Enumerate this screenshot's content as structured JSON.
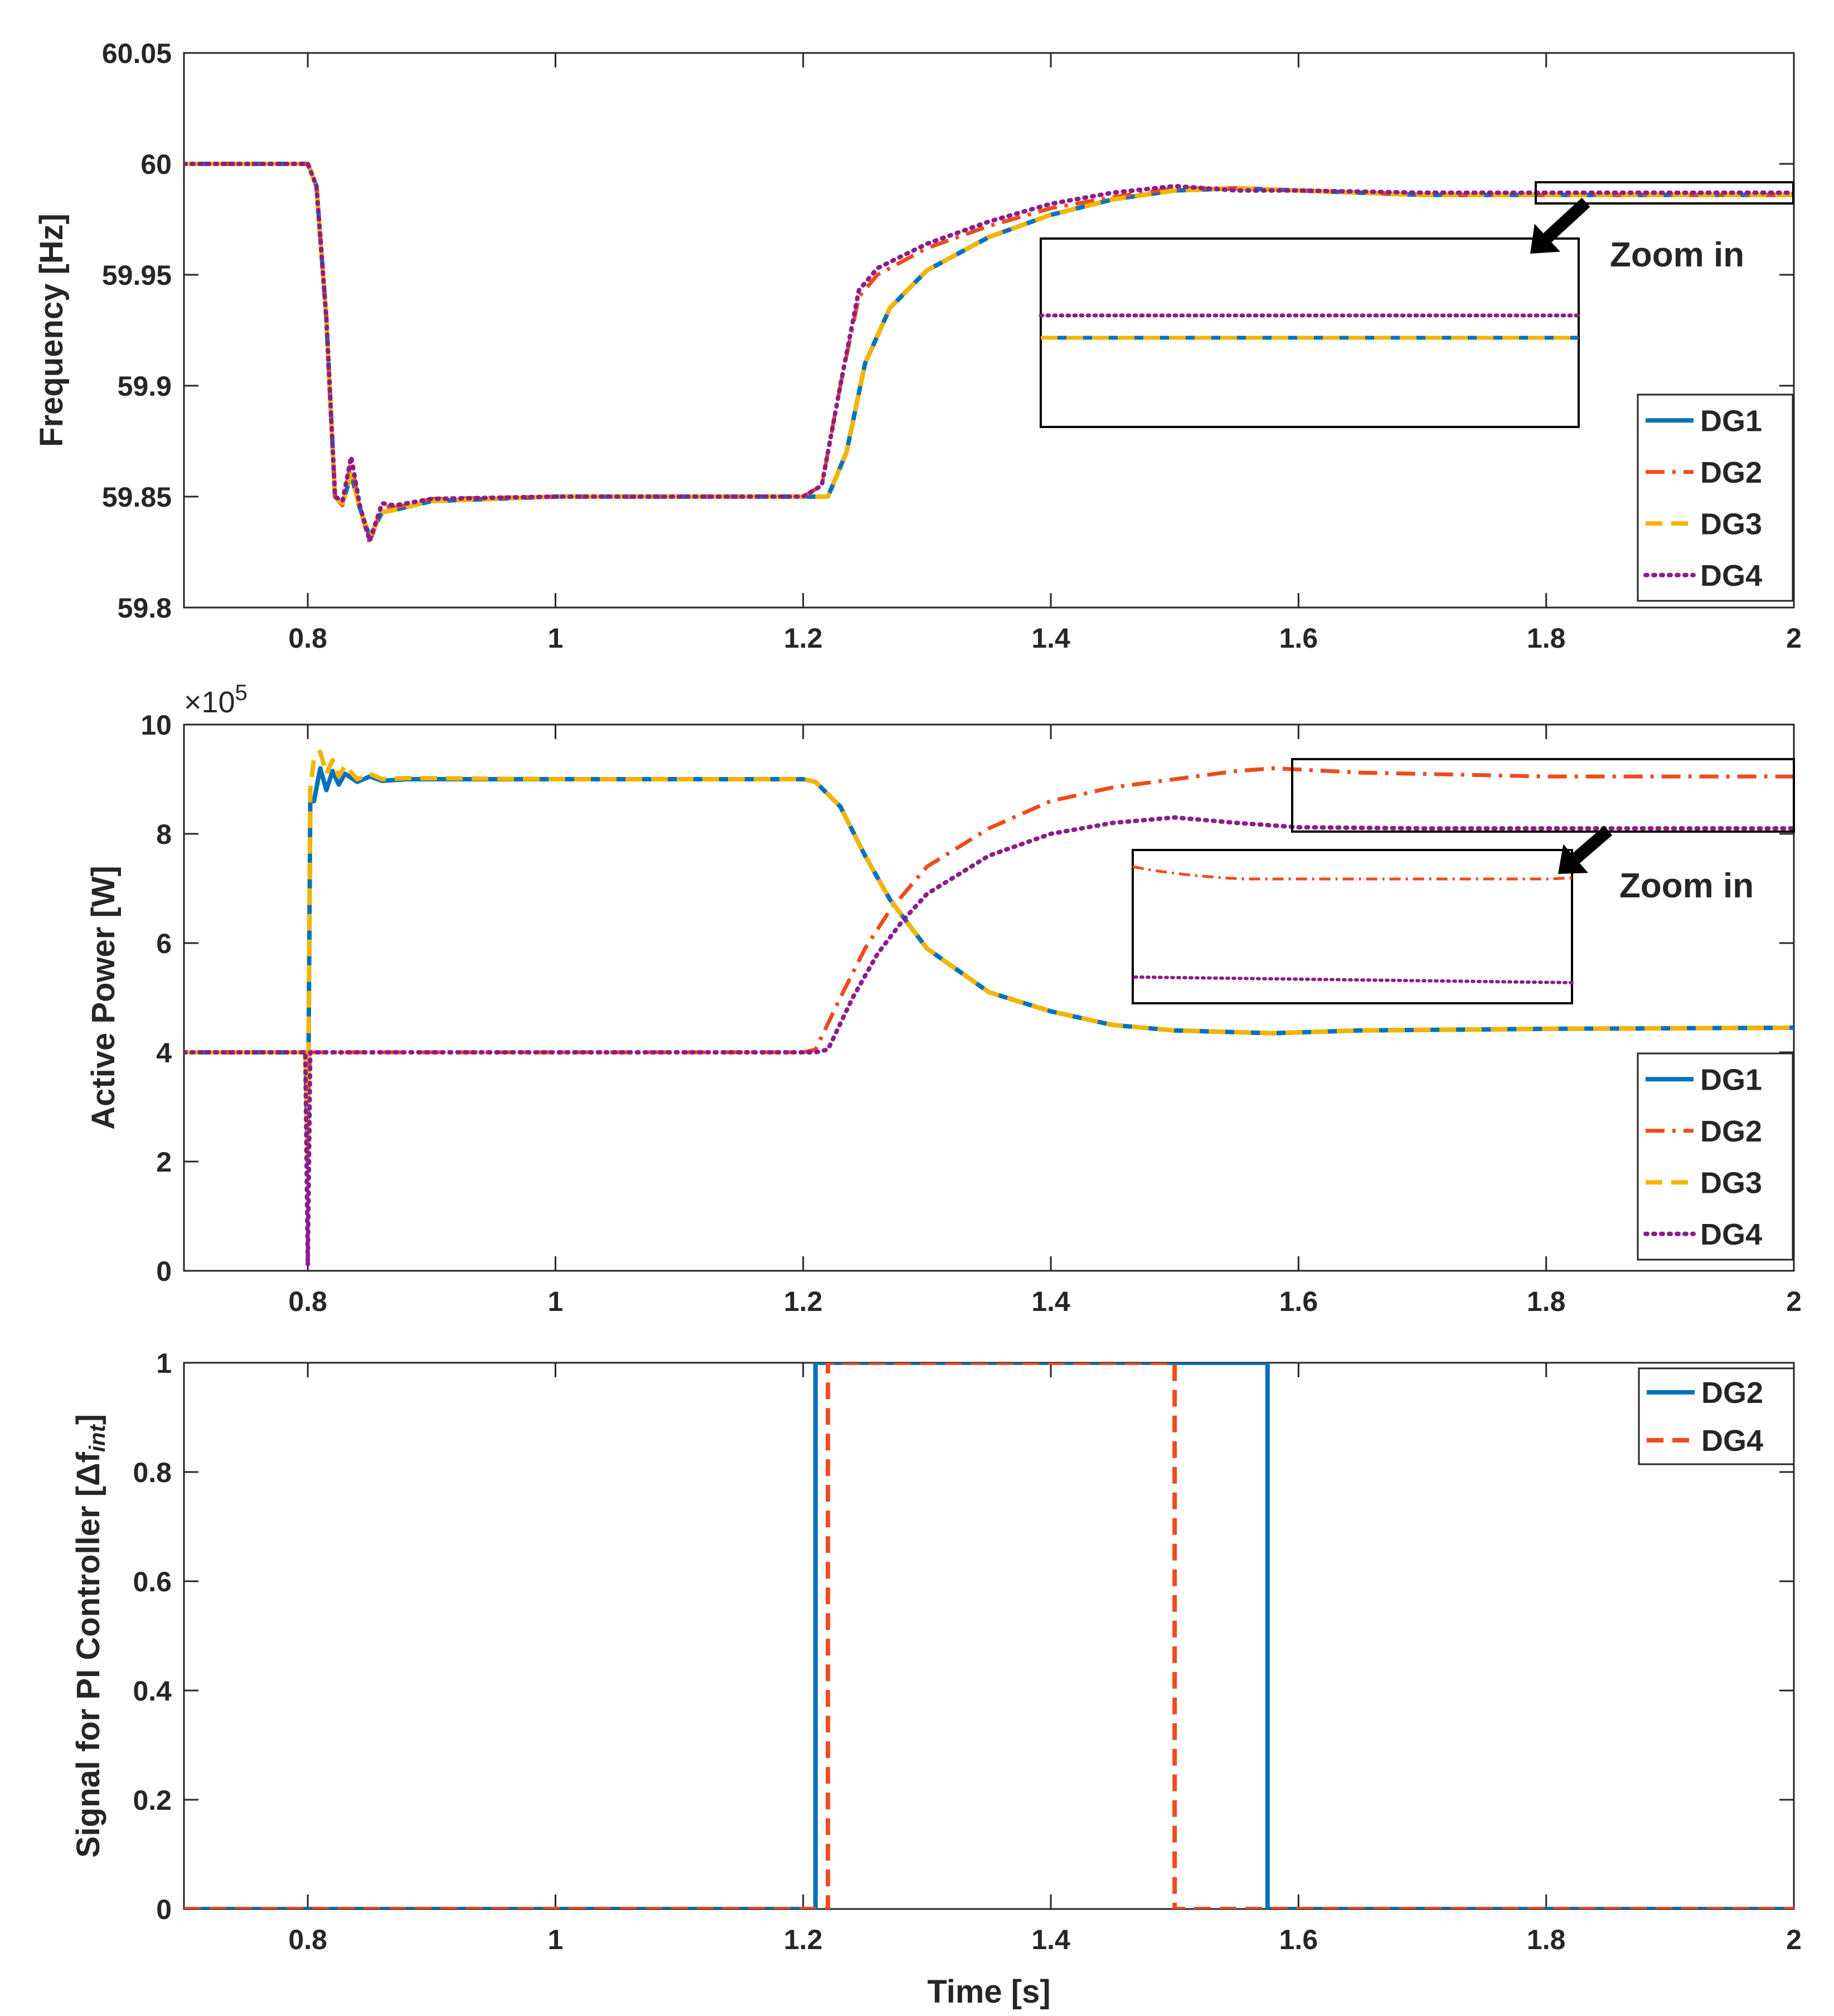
{
  "colors": {
    "DG1": "#0072BD",
    "DG2": "#EE4B1E",
    "DG3": "#F5B400",
    "DG4": "#8B1E8B",
    "signal_DG2": "#0072BD",
    "signal_DG4": "#EE4B1E"
  },
  "chart_data": [
    {
      "id": "frequency",
      "type": "line",
      "ylabel": "Frequency [Hz]",
      "xlabel": "",
      "xlim": [
        0.7,
        2
      ],
      "ylim": [
        59.8,
        60.05
      ],
      "x_ticks": [
        0.8,
        1,
        1.2,
        1.4,
        1.6,
        1.8,
        2
      ],
      "x_tick_labels": [
        "0.8",
        "1",
        "1.2",
        "1.4",
        "1.6",
        "1.8",
        "2"
      ],
      "y_ticks": [
        59.8,
        59.85,
        59.9,
        59.95,
        60,
        60.05
      ],
      "y_tick_labels": [
        "59.8",
        "59.85",
        "59.9",
        "59.95",
        "60",
        "60.05"
      ],
      "legend_location": "bottom-right",
      "annotation": "Zoom in",
      "series": [
        {
          "name": "DG1",
          "style": "solid",
          "points": [
            [
              0.7,
              60
            ],
            [
              0.8,
              60
            ],
            [
              0.807,
              59.99
            ],
            [
              0.815,
              59.93
            ],
            [
              0.822,
              59.85
            ],
            [
              0.828,
              59.847
            ],
            [
              0.835,
              59.86
            ],
            [
              0.842,
              59.845
            ],
            [
              0.85,
              59.832
            ],
            [
              0.86,
              59.843
            ],
            [
              0.87,
              59.844
            ],
            [
              0.9,
              59.848
            ],
            [
              1.0,
              59.85
            ],
            [
              1.2,
              59.85
            ],
            [
              1.22,
              59.85
            ],
            [
              1.235,
              59.87
            ],
            [
              1.25,
              59.91
            ],
            [
              1.27,
              59.935
            ],
            [
              1.3,
              59.952
            ],
            [
              1.35,
              59.967
            ],
            [
              1.4,
              59.977
            ],
            [
              1.45,
              59.984
            ],
            [
              1.5,
              59.988
            ],
            [
              1.55,
              59.989
            ],
            [
              1.6,
              59.988
            ],
            [
              1.7,
              59.986
            ],
            [
              2.0,
              59.986
            ]
          ]
        },
        {
          "name": "DG2",
          "style": "dashdot",
          "points": [
            [
              0.7,
              60
            ],
            [
              0.8,
              60
            ],
            [
              0.807,
              59.99
            ],
            [
              0.815,
              59.93
            ],
            [
              0.822,
              59.85
            ],
            [
              0.828,
              59.846
            ],
            [
              0.835,
              59.866
            ],
            [
              0.842,
              59.845
            ],
            [
              0.85,
              59.829
            ],
            [
              0.86,
              59.846
            ],
            [
              0.87,
              59.845
            ],
            [
              0.9,
              59.849
            ],
            [
              1.0,
              59.85
            ],
            [
              1.2,
              59.85
            ],
            [
              1.215,
              59.855
            ],
            [
              1.23,
              59.9
            ],
            [
              1.245,
              59.94
            ],
            [
              1.26,
              59.95
            ],
            [
              1.3,
              59.962
            ],
            [
              1.35,
              59.972
            ],
            [
              1.4,
              59.98
            ],
            [
              1.45,
              59.985
            ],
            [
              1.5,
              59.989
            ],
            [
              1.55,
              59.989
            ],
            [
              1.6,
              59.988
            ],
            [
              1.7,
              59.986
            ],
            [
              2.0,
              59.986
            ]
          ]
        },
        {
          "name": "DG3",
          "style": "dashed",
          "points": [
            [
              0.7,
              60
            ],
            [
              0.8,
              60
            ],
            [
              0.807,
              59.99
            ],
            [
              0.815,
              59.93
            ],
            [
              0.822,
              59.85
            ],
            [
              0.828,
              59.847
            ],
            [
              0.835,
              59.86
            ],
            [
              0.842,
              59.845
            ],
            [
              0.85,
              59.832
            ],
            [
              0.86,
              59.843
            ],
            [
              0.87,
              59.844
            ],
            [
              0.9,
              59.848
            ],
            [
              1.0,
              59.85
            ],
            [
              1.2,
              59.85
            ],
            [
              1.22,
              59.85
            ],
            [
              1.235,
              59.87
            ],
            [
              1.25,
              59.91
            ],
            [
              1.27,
              59.935
            ],
            [
              1.3,
              59.952
            ],
            [
              1.35,
              59.967
            ],
            [
              1.4,
              59.977
            ],
            [
              1.45,
              59.984
            ],
            [
              1.5,
              59.988
            ],
            [
              1.55,
              59.989
            ],
            [
              1.6,
              59.988
            ],
            [
              1.7,
              59.986
            ],
            [
              2.0,
              59.986
            ]
          ]
        },
        {
          "name": "DG4",
          "style": "dotted",
          "points": [
            [
              0.7,
              60
            ],
            [
              0.8,
              60
            ],
            [
              0.807,
              59.99
            ],
            [
              0.815,
              59.93
            ],
            [
              0.822,
              59.85
            ],
            [
              0.828,
              59.848
            ],
            [
              0.835,
              59.868
            ],
            [
              0.842,
              59.846
            ],
            [
              0.85,
              59.83
            ],
            [
              0.86,
              59.847
            ],
            [
              0.87,
              59.846
            ],
            [
              0.9,
              59.849
            ],
            [
              1.0,
              59.85
            ],
            [
              1.2,
              59.85
            ],
            [
              1.215,
              59.855
            ],
            [
              1.23,
              59.9
            ],
            [
              1.245,
              59.943
            ],
            [
              1.26,
              59.953
            ],
            [
              1.3,
              59.964
            ],
            [
              1.35,
              59.974
            ],
            [
              1.4,
              59.982
            ],
            [
              1.45,
              59.987
            ],
            [
              1.5,
              59.99
            ],
            [
              1.55,
              59.988
            ],
            [
              1.6,
              59.988
            ],
            [
              1.7,
              59.987
            ],
            [
              2.0,
              59.987
            ]
          ]
        }
      ]
    },
    {
      "id": "active-power",
      "type": "line",
      "ylabel": "Active Power [W]",
      "xlabel": "",
      "multiplier": "×10",
      "multiplier_exp": "5",
      "xlim": [
        0.7,
        2
      ],
      "ylim": [
        0,
        10
      ],
      "x_ticks": [
        0.8,
        1,
        1.2,
        1.4,
        1.6,
        1.8,
        2
      ],
      "x_tick_labels": [
        "0.8",
        "1",
        "1.2",
        "1.4",
        "1.6",
        "1.8",
        "2"
      ],
      "y_ticks": [
        0,
        2,
        4,
        6,
        8,
        10
      ],
      "y_tick_labels": [
        "0",
        "2",
        "4",
        "6",
        "8",
        "10"
      ],
      "legend_location": "bottom-right",
      "annotation": "Zoom in",
      "series": [
        {
          "name": "DG1",
          "style": "solid",
          "points": [
            [
              0.7,
              4
            ],
            [
              0.798,
              4
            ],
            [
              0.8,
              2
            ],
            [
              0.802,
              8.6
            ],
            [
              0.805,
              8.6
            ],
            [
              0.81,
              9.2
            ],
            [
              0.815,
              8.8
            ],
            [
              0.82,
              9.15
            ],
            [
              0.825,
              8.9
            ],
            [
              0.83,
              9.1
            ],
            [
              0.84,
              8.95
            ],
            [
              0.85,
              9.05
            ],
            [
              0.86,
              8.97
            ],
            [
              0.88,
              9.0
            ],
            [
              1.0,
              9.0
            ],
            [
              1.2,
              9.0
            ],
            [
              1.21,
              8.95
            ],
            [
              1.23,
              8.5
            ],
            [
              1.25,
              7.6
            ],
            [
              1.27,
              6.8
            ],
            [
              1.3,
              5.9
            ],
            [
              1.35,
              5.1
            ],
            [
              1.4,
              4.75
            ],
            [
              1.45,
              4.5
            ],
            [
              1.5,
              4.4
            ],
            [
              1.58,
              4.35
            ],
            [
              1.65,
              4.4
            ],
            [
              1.8,
              4.43
            ],
            [
              2.0,
              4.45
            ]
          ]
        },
        {
          "name": "DG2",
          "style": "dashdot",
          "points": [
            [
              0.7,
              4
            ],
            [
              0.798,
              4
            ],
            [
              0.8,
              3.0
            ],
            [
              0.802,
              4
            ],
            [
              1.2,
              4
            ],
            [
              1.21,
              4.05
            ],
            [
              1.23,
              5.0
            ],
            [
              1.25,
              5.9
            ],
            [
              1.27,
              6.6
            ],
            [
              1.3,
              7.4
            ],
            [
              1.35,
              8.1
            ],
            [
              1.4,
              8.6
            ],
            [
              1.45,
              8.85
            ],
            [
              1.5,
              9.0
            ],
            [
              1.55,
              9.15
            ],
            [
              1.58,
              9.2
            ],
            [
              1.65,
              9.12
            ],
            [
              1.8,
              9.05
            ],
            [
              2.0,
              9.05
            ]
          ]
        },
        {
          "name": "DG3",
          "style": "dashed",
          "points": [
            [
              0.7,
              4
            ],
            [
              0.798,
              4
            ],
            [
              0.8,
              2
            ],
            [
              0.802,
              8.8
            ],
            [
              0.805,
              9.4
            ],
            [
              0.81,
              9.5
            ],
            [
              0.815,
              9.1
            ],
            [
              0.82,
              9.35
            ],
            [
              0.825,
              9.05
            ],
            [
              0.83,
              9.25
            ],
            [
              0.84,
              9.0
            ],
            [
              0.85,
              9.1
            ],
            [
              0.86,
              9.0
            ],
            [
              0.88,
              9.02
            ],
            [
              1.0,
              9.0
            ],
            [
              1.2,
              9.0
            ],
            [
              1.21,
              8.95
            ],
            [
              1.23,
              8.5
            ],
            [
              1.25,
              7.6
            ],
            [
              1.27,
              6.8
            ],
            [
              1.3,
              5.9
            ],
            [
              1.35,
              5.1
            ],
            [
              1.4,
              4.75
            ],
            [
              1.45,
              4.5
            ],
            [
              1.5,
              4.4
            ],
            [
              1.58,
              4.35
            ],
            [
              1.65,
              4.4
            ],
            [
              1.8,
              4.43
            ],
            [
              2.0,
              4.45
            ]
          ]
        },
        {
          "name": "DG4",
          "style": "dotted",
          "points": [
            [
              0.7,
              4
            ],
            [
              0.798,
              4
            ],
            [
              0.8,
              0.1
            ],
            [
              0.802,
              4
            ],
            [
              1.21,
              4
            ],
            [
              1.22,
              4.05
            ],
            [
              1.24,
              5.0
            ],
            [
              1.26,
              5.8
            ],
            [
              1.28,
              6.4
            ],
            [
              1.3,
              6.9
            ],
            [
              1.35,
              7.6
            ],
            [
              1.4,
              8.0
            ],
            [
              1.45,
              8.2
            ],
            [
              1.5,
              8.3
            ],
            [
              1.55,
              8.2
            ],
            [
              1.6,
              8.12
            ],
            [
              1.7,
              8.1
            ],
            [
              2.0,
              8.1
            ]
          ]
        }
      ]
    },
    {
      "id": "pi-signal",
      "type": "line",
      "ylabel": "Signal for PI Controller [Δf",
      "ylabel_sub": "int",
      "ylabel_end": "]",
      "xlabel": "Time [s]",
      "xlim": [
        0.7,
        2
      ],
      "ylim": [
        0,
        1
      ],
      "x_ticks": [
        0.8,
        1,
        1.2,
        1.4,
        1.6,
        1.8,
        2
      ],
      "x_tick_labels": [
        "0.8",
        "1",
        "1.2",
        "1.4",
        "1.6",
        "1.8",
        "2"
      ],
      "y_ticks": [
        0,
        0.2,
        0.4,
        0.6,
        0.8,
        1
      ],
      "y_tick_labels": [
        "0",
        "0.2",
        "0.4",
        "0.6",
        "0.8",
        "1"
      ],
      "legend_location": "top-right",
      "series": [
        {
          "name": "DG2",
          "style": "solid",
          "points": [
            [
              0.7,
              0
            ],
            [
              1.21,
              0
            ],
            [
              1.21,
              1
            ],
            [
              1.575,
              1
            ],
            [
              1.575,
              0
            ],
            [
              2.0,
              0
            ]
          ]
        },
        {
          "name": "DG4",
          "style": "dashed",
          "points": [
            [
              0.7,
              0
            ],
            [
              1.22,
              0
            ],
            [
              1.22,
              1
            ],
            [
              1.5,
              1
            ],
            [
              1.5,
              0
            ],
            [
              2.0,
              0
            ]
          ]
        }
      ]
    }
  ]
}
